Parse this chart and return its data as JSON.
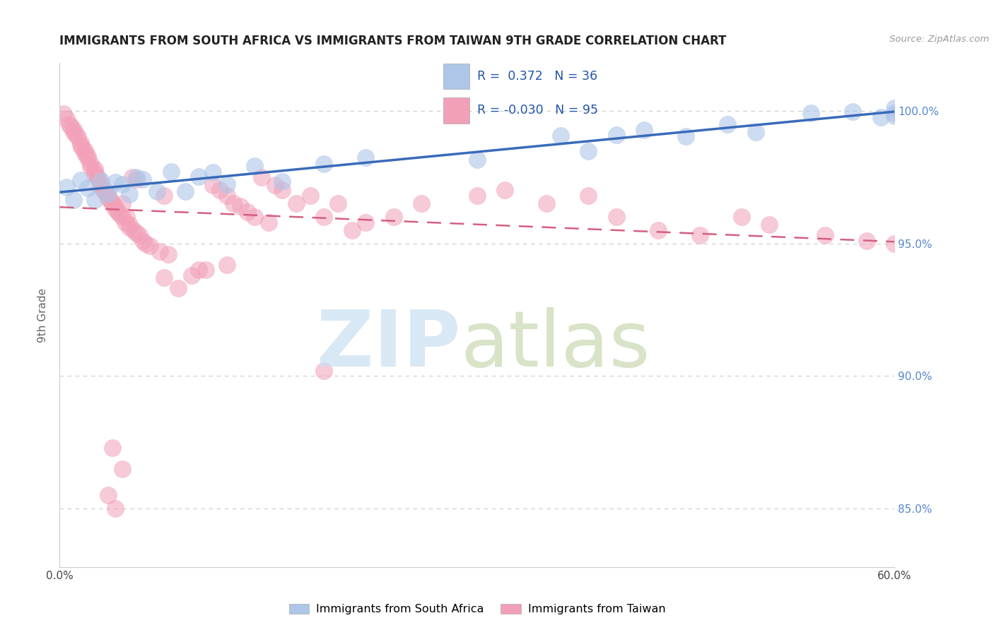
{
  "title": "IMMIGRANTS FROM SOUTH AFRICA VS IMMIGRANTS FROM TAIWAN 9TH GRADE CORRELATION CHART",
  "source": "Source: ZipAtlas.com",
  "ylabel": "9th Grade",
  "x_min": 0.0,
  "x_max": 0.6,
  "y_min": 0.828,
  "y_max": 1.018,
  "y_ticks": [
    0.85,
    0.9,
    0.95,
    1.0
  ],
  "y_tick_labels": [
    "85.0%",
    "90.0%",
    "95.0%",
    "100.0%"
  ],
  "legend_r_blue": "0.372",
  "legend_n_blue": "36",
  "legend_r_pink": "-0.030",
  "legend_n_pink": "95",
  "blue_color": "#aec6e8",
  "pink_color": "#f2a0b8",
  "blue_edge_color": "#aec6e8",
  "pink_edge_color": "#f2a0b8",
  "blue_line_color": "#3a6bba",
  "pink_line_color": "#d45f80",
  "grid_color": "#cccccc",
  "tick_color": "#5588cc",
  "watermark_zip_color": "#c8dff0",
  "watermark_atlas_color": "#c8d8b0"
}
